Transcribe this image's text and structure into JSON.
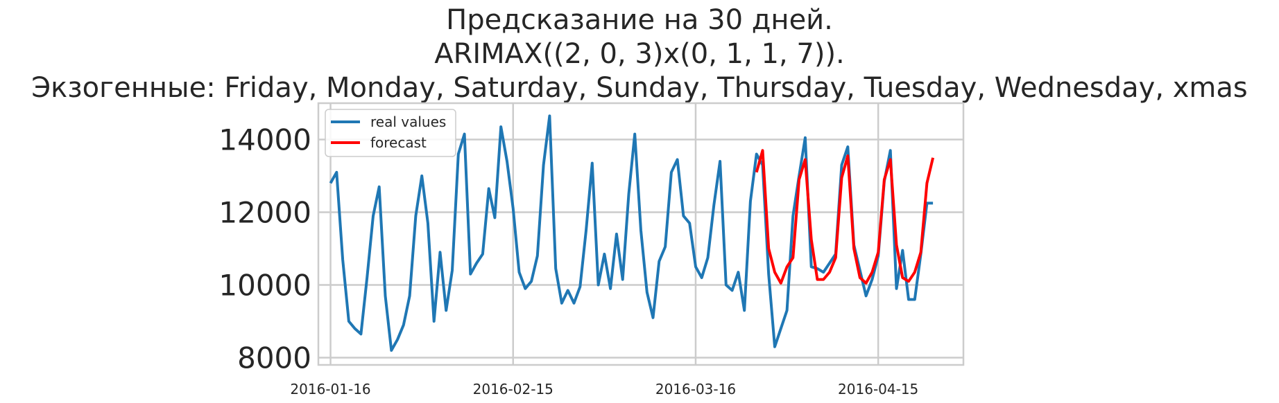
{
  "chart_data": {
    "type": "line",
    "title_lines": [
      "Предсказание на 30 дней.",
      "ARIMAX((2, 0, 3)x(0, 1, 1, 7)).",
      "Экзогенные: Friday, Monday, Saturday, Sunday, Thursday, Tuesday, Wednesday, xmas"
    ],
    "x_start": "2016-01-16",
    "x_end": "2016-04-25",
    "xlim": [
      "2016-01-14",
      "2016-04-29"
    ],
    "ylim": [
      7800,
      15000
    ],
    "x_ticks": [
      "2016-01-16",
      "2016-02-15",
      "2016-03-16",
      "2016-04-15"
    ],
    "y_ticks": [
      8000,
      10000,
      12000,
      14000
    ],
    "grid": true,
    "legend_position": "top-left",
    "series": [
      {
        "name": "real values",
        "color": "#1f77b4",
        "values": [
          12800,
          13100,
          10700,
          9000,
          8800,
          8650,
          10200,
          11900,
          12700,
          9700,
          8200,
          8500,
          8900,
          9700,
          11900,
          13000,
          11700,
          9000,
          10900,
          9300,
          10400,
          13600,
          14150,
          10300,
          10600,
          10850,
          12650,
          11850,
          14350,
          13400,
          12100,
          10350,
          9900,
          10100,
          10800,
          13300,
          14650,
          10450,
          9500,
          9850,
          9500,
          9950,
          11500,
          13350,
          10000,
          10850,
          9900,
          11400,
          10150,
          12500,
          14150,
          11500,
          9800,
          9100,
          10650,
          11050,
          13100,
          13450,
          11900,
          11700,
          10500,
          10200,
          10750,
          12200,
          13400,
          10000,
          9850,
          10350,
          9300,
          12300,
          13600,
          13300,
          10300,
          8300,
          8800,
          9300,
          11900,
          13000,
          14050,
          10500,
          10450,
          10350,
          10600,
          10850,
          13300,
          13800,
          11100,
          10400,
          9700,
          10150,
          10800,
          12850,
          13700,
          9900,
          10950,
          9600,
          9600,
          10850,
          12250,
          12250
        ]
      },
      {
        "name": "forecast",
        "color": "#ff0000",
        "start_index": 70,
        "values": [
          13100,
          13700,
          11000,
          10350,
          10050,
          10500,
          10750,
          12900,
          13450,
          11250,
          10150,
          10150,
          10350,
          10750,
          12950,
          13550,
          11000,
          10200,
          10050,
          10350,
          10900,
          12900,
          13450,
          11100,
          10200,
          10100,
          10350,
          10900,
          12800,
          13500
        ]
      }
    ]
  }
}
